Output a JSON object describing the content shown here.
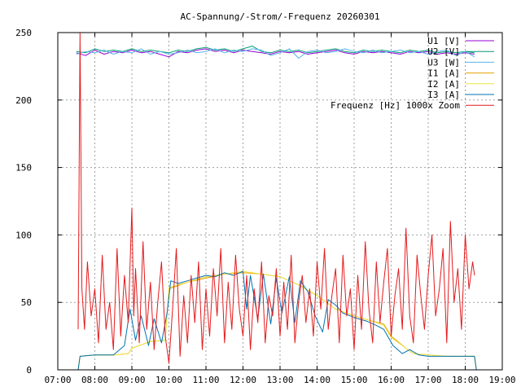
{
  "chart_data": {
    "type": "line",
    "title": "AC-Spannung/-Strom/-Frequenz 20260301",
    "xlabel": "",
    "ylabel": "",
    "xlim": [
      7,
      19
    ],
    "ylim": [
      0,
      250
    ],
    "grid": true,
    "legend_position": "top-right",
    "x_ticks": [
      {
        "v": 7,
        "label": "07:00"
      },
      {
        "v": 8,
        "label": "08:00"
      },
      {
        "v": 9,
        "label": "09:00"
      },
      {
        "v": 10,
        "label": "10:00"
      },
      {
        "v": 11,
        "label": "11:00"
      },
      {
        "v": 12,
        "label": "12:00"
      },
      {
        "v": 13,
        "label": "13:00"
      },
      {
        "v": 14,
        "label": "14:00"
      },
      {
        "v": 15,
        "label": "15:00"
      },
      {
        "v": 16,
        "label": "16:00"
      },
      {
        "v": 17,
        "label": "17:00"
      },
      {
        "v": 18,
        "label": "18:00"
      },
      {
        "v": 19,
        "label": "19:00"
      }
    ],
    "y_ticks": [
      {
        "v": 0,
        "label": "0"
      },
      {
        "v": 50,
        "label": "50"
      },
      {
        "v": 100,
        "label": "100"
      },
      {
        "v": 150,
        "label": "150"
      },
      {
        "v": 200,
        "label": "200"
      },
      {
        "v": 250,
        "label": "250"
      }
    ],
    "series": [
      {
        "name": "U1 [V]",
        "color": "#9400d3",
        "x": [
          7.5,
          7.75,
          8.0,
          8.25,
          8.5,
          8.75,
          9.0,
          9.25,
          9.5,
          9.75,
          10.0,
          10.25,
          10.5,
          10.75,
          11.0,
          11.25,
          11.5,
          11.75,
          12.0,
          12.25,
          12.5,
          12.75,
          13.0,
          13.25,
          13.5,
          13.75,
          14.0,
          14.25,
          14.5,
          14.75,
          15.0,
          15.25,
          15.5,
          15.75,
          16.0,
          16.25,
          16.5,
          16.75,
          17.0,
          17.25,
          17.5,
          17.75,
          18.0,
          18.25
        ],
        "y": [
          235,
          233,
          237,
          234,
          236,
          235,
          237,
          235,
          236,
          234,
          232,
          236,
          235,
          237,
          238,
          236,
          237,
          235,
          237,
          236,
          235,
          234,
          236,
          235,
          236,
          234,
          235,
          236,
          237,
          235,
          234,
          236,
          235,
          236,
          235,
          234,
          236,
          235,
          236,
          234,
          235,
          234,
          235,
          234
        ]
      },
      {
        "name": "U2 [V]",
        "color": "#009e73",
        "x": [
          7.5,
          7.75,
          8.0,
          8.25,
          8.5,
          8.75,
          9.0,
          9.25,
          9.5,
          9.75,
          10.0,
          10.25,
          10.5,
          10.75,
          11.0,
          11.25,
          11.5,
          11.75,
          12.0,
          12.25,
          12.5,
          12.75,
          13.0,
          13.25,
          13.5,
          13.75,
          14.0,
          14.25,
          14.5,
          14.75,
          15.0,
          15.25,
          15.5,
          15.75,
          16.0,
          16.25,
          16.5,
          16.75,
          17.0,
          17.25,
          17.5,
          17.75,
          18.0,
          18.25
        ],
        "y": [
          236,
          235,
          238,
          236,
          237,
          236,
          238,
          236,
          237,
          236,
          235,
          237,
          236,
          238,
          239,
          237,
          238,
          236,
          238,
          240,
          236,
          235,
          237,
          236,
          237,
          235,
          236,
          237,
          238,
          236,
          235,
          237,
          236,
          237,
          236,
          235,
          237,
          236,
          237,
          235,
          236,
          235,
          236,
          235
        ]
      },
      {
        "name": "U3 [W]",
        "color": "#56b4e9",
        "x": [
          7.5,
          7.75,
          8.0,
          8.25,
          8.5,
          8.75,
          9.0,
          9.25,
          9.5,
          9.75,
          10.0,
          10.25,
          10.5,
          10.75,
          11.0,
          11.25,
          11.5,
          11.75,
          12.0,
          12.25,
          12.5,
          12.75,
          13.0,
          13.25,
          13.5,
          13.75,
          14.0,
          14.25,
          14.5,
          14.75,
          15.0,
          15.25,
          15.5,
          15.75,
          16.0,
          16.25,
          16.5,
          16.75,
          17.0,
          17.25,
          17.5,
          17.75,
          18.0,
          18.25
        ],
        "y": [
          234,
          236,
          235,
          237,
          234,
          236,
          235,
          238,
          234,
          236,
          234,
          235,
          237,
          235,
          236,
          238,
          235,
          237,
          236,
          238,
          237,
          233,
          235,
          238,
          231,
          236,
          237,
          235,
          236,
          238,
          236,
          235,
          237,
          235,
          236,
          237,
          235,
          236,
          234,
          236,
          237,
          233,
          236,
          232
        ]
      },
      {
        "name": "I1 [A]",
        "color": "#e69f00",
        "x": [
          7.55,
          7.6,
          8.0,
          8.5,
          8.9,
          9.0,
          9.5,
          9.9,
          10.0,
          10.5,
          11.0,
          11.5,
          12.0,
          12.5,
          13.0,
          13.5,
          14.0,
          14.5,
          15.0,
          15.5,
          15.8,
          16.0,
          16.4,
          16.6,
          17.0,
          17.5,
          18.0,
          18.25,
          18.3
        ],
        "y": [
          0,
          10,
          11,
          11,
          12,
          16,
          21,
          22,
          60,
          65,
          68,
          71,
          72,
          71,
          69,
          63,
          55,
          45,
          40,
          36,
          34,
          25,
          16,
          12,
          11,
          10,
          10,
          10,
          0
        ]
      },
      {
        "name": "I2 [A]",
        "color": "#f0e442",
        "x": [
          7.55,
          7.6,
          8.0,
          8.5,
          8.9,
          9.0,
          9.5,
          9.9,
          10.0,
          10.5,
          11.0,
          11.5,
          12.0,
          12.5,
          13.0,
          13.5,
          14.0,
          14.5,
          15.0,
          15.5,
          15.8,
          16.0,
          16.4,
          16.6,
          17.0,
          17.5,
          18.0,
          18.25,
          18.3
        ],
        "y": [
          0,
          10,
          11,
          11,
          12,
          16,
          21,
          22,
          61,
          65,
          69,
          71,
          73,
          71,
          69,
          63,
          55,
          45,
          40,
          36,
          33,
          24,
          16,
          12,
          11,
          10,
          10,
          10,
          0
        ]
      },
      {
        "name": "I3 [A]",
        "color": "#0072b2",
        "x": [
          7.55,
          7.6,
          8.0,
          8.5,
          8.8,
          8.95,
          9.1,
          9.25,
          9.45,
          9.6,
          9.8,
          9.95,
          10.05,
          10.25,
          10.5,
          10.75,
          11.0,
          11.25,
          11.5,
          11.75,
          12.0,
          12.1,
          12.2,
          12.4,
          12.55,
          12.75,
          12.9,
          13.05,
          13.25,
          13.4,
          13.55,
          13.75,
          13.95,
          14.15,
          14.3,
          14.5,
          14.7,
          14.9,
          15.1,
          15.35,
          15.6,
          15.8,
          16.05,
          16.3,
          16.5,
          16.75,
          17.0,
          17.5,
          18.0,
          18.25,
          18.3
        ],
        "y": [
          0,
          10,
          11,
          11,
          18,
          45,
          22,
          40,
          18,
          38,
          20,
          42,
          66,
          64,
          66,
          68,
          70,
          69,
          72,
          70,
          73,
          45,
          70,
          38,
          71,
          34,
          68,
          42,
          69,
          35,
          66,
          58,
          40,
          28,
          52,
          48,
          42,
          40,
          38,
          36,
          33,
          30,
          18,
          12,
          15,
          11,
          10,
          10,
          10,
          10,
          0
        ]
      },
      {
        "name": "Frequenz [Hz] 1000x Zoom",
        "color": "#e41a1c",
        "x": [
          7.55,
          7.6,
          7.65,
          7.72,
          7.8,
          7.9,
          8.0,
          8.1,
          8.2,
          8.3,
          8.4,
          8.5,
          8.6,
          8.7,
          8.8,
          8.9,
          9.0,
          9.05,
          9.1,
          9.2,
          9.3,
          9.4,
          9.5,
          9.6,
          9.7,
          9.8,
          9.9,
          10.0,
          10.1,
          10.2,
          10.3,
          10.4,
          10.5,
          10.6,
          10.7,
          10.8,
          10.9,
          11.0,
          11.1,
          11.2,
          11.3,
          11.4,
          11.5,
          11.6,
          11.7,
          11.8,
          11.9,
          12.0,
          12.1,
          12.2,
          12.3,
          12.4,
          12.5,
          12.6,
          12.7,
          12.8,
          12.9,
          13.0,
          13.1,
          13.2,
          13.3,
          13.4,
          13.5,
          13.6,
          13.7,
          13.8,
          13.9,
          14.0,
          14.1,
          14.2,
          14.3,
          14.4,
          14.5,
          14.6,
          14.7,
          14.8,
          14.9,
          15.0,
          15.1,
          15.2,
          15.3,
          15.4,
          15.5,
          15.6,
          15.7,
          15.8,
          15.9,
          16.0,
          16.1,
          16.2,
          16.3,
          16.4,
          16.5,
          16.6,
          16.7,
          16.8,
          16.9,
          17.0,
          17.1,
          17.2,
          17.3,
          17.4,
          17.5,
          17.6,
          17.7,
          17.8,
          17.9,
          18.0,
          18.1,
          18.2,
          18.25
        ],
        "y": [
          30,
          250,
          60,
          30,
          80,
          40,
          60,
          20,
          85,
          30,
          50,
          15,
          90,
          25,
          70,
          35,
          120,
          40,
          75,
          20,
          95,
          30,
          65,
          15,
          50,
          80,
          25,
          5,
          45,
          90,
          10,
          55,
          20,
          70,
          35,
          80,
          15,
          60,
          25,
          75,
          40,
          90,
          20,
          65,
          30,
          85,
          45,
          25,
          70,
          15,
          60,
          35,
          80,
          20,
          55,
          40,
          75,
          25,
          65,
          30,
          85,
          20,
          50,
          70,
          35,
          60,
          25,
          80,
          45,
          90,
          30,
          55,
          75,
          20,
          85,
          40,
          60,
          15,
          70,
          30,
          95,
          45,
          20,
          80,
          35,
          65,
          90,
          25,
          55,
          75,
          30,
          105,
          40,
          20,
          85,
          55,
          30,
          70,
          100,
          40,
          60,
          90,
          20,
          110,
          50,
          75,
          30,
          100,
          60,
          80,
          70
        ]
      }
    ]
  }
}
